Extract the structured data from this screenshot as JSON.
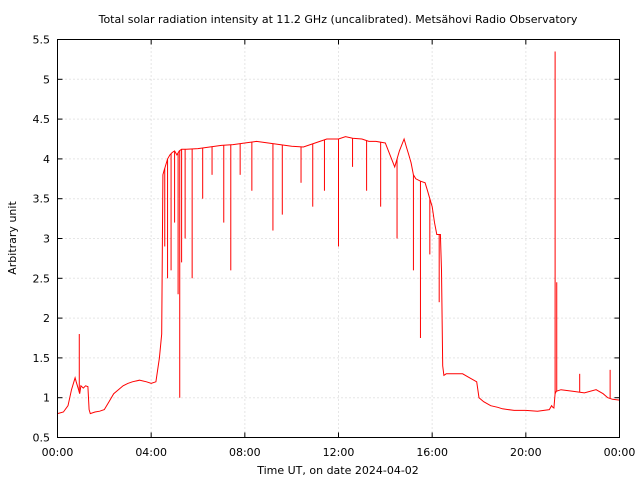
{
  "chart_data": {
    "type": "line",
    "title": "Total solar radiation intensity at 11.2 GHz (uncalibrated). Metsähovi Radio Observatory",
    "xlabel": "Time UT, on date 2024-04-02",
    "ylabel": "Arbitrary unit",
    "xlim": [
      0,
      24
    ],
    "ylim": [
      0.5,
      5.5
    ],
    "x_ticks": [
      0,
      4,
      8,
      12,
      16,
      20,
      24
    ],
    "x_tick_labels": [
      "00:00",
      "04:00",
      "08:00",
      "12:00",
      "16:00",
      "20:00",
      "00:00"
    ],
    "y_ticks": [
      0.5,
      1,
      1.5,
      2,
      2.5,
      3,
      3.5,
      4,
      4.5,
      5,
      5.5
    ],
    "y_tick_labels": [
      "0.5",
      "1",
      "1.5",
      "2",
      "2.5",
      "3",
      "3.5",
      "4",
      "4.5",
      "5",
      "5.5"
    ],
    "grid": true,
    "line_color": "#ff0000",
    "series": [
      {
        "x": [
          0.0,
          0.25,
          0.45,
          0.6,
          0.75,
          0.8,
          0.85,
          0.9,
          0.95,
          1.0,
          1.1,
          1.2,
          1.3,
          1.35,
          1.4,
          1.6,
          1.8,
          2.0,
          2.2,
          2.4,
          2.6,
          2.8,
          3.0,
          3.2,
          3.5,
          3.8,
          4.0,
          4.2,
          4.35,
          4.45,
          4.5,
          4.55,
          4.6,
          4.7,
          4.8,
          4.9,
          5.0,
          5.1,
          5.2,
          5.3,
          5.5,
          6.0,
          6.5,
          7.0,
          7.5,
          8.0,
          8.5,
          9.0,
          9.5,
          10.0,
          10.5,
          11.0,
          11.5,
          12.0,
          12.3,
          12.6,
          13.0,
          13.3,
          13.6,
          14.0,
          14.2,
          14.4,
          14.6,
          14.8,
          14.9,
          15.0,
          15.1,
          15.2,
          15.3,
          15.5,
          15.7,
          15.8,
          15.9,
          16.0,
          16.1,
          16.2,
          16.35,
          16.4,
          16.45,
          16.5,
          16.6,
          16.8,
          17.0,
          17.3,
          17.6,
          17.9,
          18.0,
          18.2,
          18.5,
          18.8,
          19.0,
          19.5,
          20.0,
          20.5,
          21.0,
          21.1,
          21.15,
          21.2,
          21.25,
          21.3,
          21.5,
          22.0,
          22.5,
          23.0,
          23.3,
          23.5,
          23.7,
          24.0
        ],
        "y": [
          0.8,
          0.82,
          0.9,
          1.1,
          1.25,
          1.2,
          1.15,
          1.1,
          1.05,
          1.15,
          1.12,
          1.15,
          1.14,
          0.85,
          0.8,
          0.82,
          0.83,
          0.85,
          0.95,
          1.05,
          1.1,
          1.15,
          1.18,
          1.2,
          1.22,
          1.2,
          1.18,
          1.2,
          1.5,
          1.8,
          3.8,
          3.85,
          3.9,
          4.0,
          4.05,
          4.08,
          4.1,
          4.05,
          4.1,
          4.12,
          4.12,
          4.13,
          4.15,
          4.17,
          4.18,
          4.2,
          4.22,
          4.2,
          4.18,
          4.16,
          4.15,
          4.2,
          4.25,
          4.25,
          4.28,
          4.26,
          4.25,
          4.22,
          4.22,
          4.2,
          4.05,
          3.9,
          4.1,
          4.25,
          4.15,
          4.05,
          3.95,
          3.8,
          3.75,
          3.72,
          3.7,
          3.6,
          3.5,
          3.4,
          3.2,
          3.05,
          3.05,
          2.6,
          1.4,
          1.28,
          1.3,
          1.3,
          1.3,
          1.3,
          1.25,
          1.2,
          1.0,
          0.95,
          0.9,
          0.88,
          0.86,
          0.84,
          0.84,
          0.83,
          0.85,
          0.9,
          0.88,
          0.87,
          1.05,
          1.08,
          1.1,
          1.08,
          1.06,
          1.1,
          1.05,
          1.0,
          0.98,
          0.97
        ]
      }
    ],
    "spikes": [
      {
        "x": 0.93,
        "y": 1.8
      },
      {
        "x": 4.58,
        "y": 2.9
      },
      {
        "x": 4.7,
        "y": 2.5
      },
      {
        "x": 4.85,
        "y": 2.6
      },
      {
        "x": 5.0,
        "y": 3.2
      },
      {
        "x": 5.15,
        "y": 2.3
      },
      {
        "x": 5.22,
        "y": 1.0
      },
      {
        "x": 5.3,
        "y": 2.7
      },
      {
        "x": 5.45,
        "y": 3.0
      },
      {
        "x": 5.75,
        "y": 2.5
      },
      {
        "x": 6.2,
        "y": 3.5
      },
      {
        "x": 6.6,
        "y": 3.8
      },
      {
        "x": 7.1,
        "y": 3.2
      },
      {
        "x": 7.4,
        "y": 2.6
      },
      {
        "x": 7.8,
        "y": 3.8
      },
      {
        "x": 8.3,
        "y": 3.6
      },
      {
        "x": 9.2,
        "y": 3.1
      },
      {
        "x": 9.6,
        "y": 3.3
      },
      {
        "x": 10.4,
        "y": 3.7
      },
      {
        "x": 10.9,
        "y": 3.4
      },
      {
        "x": 11.4,
        "y": 3.6
      },
      {
        "x": 12.0,
        "y": 2.9
      },
      {
        "x": 12.6,
        "y": 3.9
      },
      {
        "x": 13.2,
        "y": 3.6
      },
      {
        "x": 13.8,
        "y": 3.4
      },
      {
        "x": 14.5,
        "y": 3.0
      },
      {
        "x": 15.2,
        "y": 2.6
      },
      {
        "x": 15.5,
        "y": 1.75
      },
      {
        "x": 15.9,
        "y": 2.8
      },
      {
        "x": 16.3,
        "y": 2.2
      },
      {
        "x": 21.25,
        "y": 5.35
      },
      {
        "x": 21.32,
        "y": 2.45
      },
      {
        "x": 22.3,
        "y": 1.3
      },
      {
        "x": 23.6,
        "y": 1.35
      }
    ]
  }
}
